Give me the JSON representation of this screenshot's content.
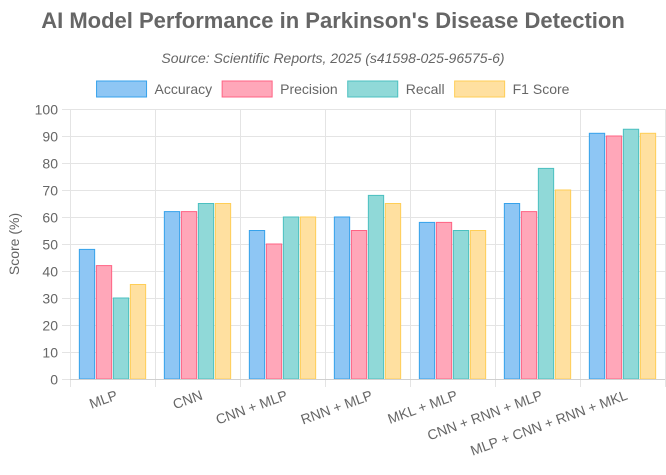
{
  "chart_data": {
    "type": "bar",
    "title": "AI Model Performance in Parkinson's Disease Detection",
    "subtitle": "Source: Scientific Reports, 2025 (s41598-025-96575-6)",
    "xlabel": "",
    "ylabel": "Score (%)",
    "ylim": [
      0,
      100
    ],
    "yticks": [
      0,
      10,
      20,
      30,
      40,
      50,
      60,
      70,
      80,
      90,
      100
    ],
    "grid": true,
    "legend_position": "top",
    "categories": [
      "MLP",
      "CNN",
      "CNN + MLP",
      "RNN + MLP",
      "MKL + MLP",
      "CNN + RNN + MLP",
      "MLP + CNN + RNN + MKL"
    ],
    "series": [
      {
        "name": "Accuracy",
        "fill": "#8ec6f4",
        "stroke": "#36a2eb",
        "values": [
          48,
          62,
          55,
          60,
          58,
          65,
          91
        ]
      },
      {
        "name": "Precision",
        "fill": "#ffa7b9",
        "stroke": "#ff6384",
        "values": [
          42,
          62,
          50,
          55,
          58,
          62,
          90
        ]
      },
      {
        "name": "Recall",
        "fill": "#90d9d8",
        "stroke": "#4bc0c0",
        "values": [
          30,
          65,
          60,
          68,
          55,
          78,
          92.5
        ]
      },
      {
        "name": "F1 Score",
        "fill": "#ffe0a0",
        "stroke": "#ffce56",
        "values": [
          35,
          65,
          60,
          65,
          55,
          70,
          91
        ]
      }
    ]
  }
}
